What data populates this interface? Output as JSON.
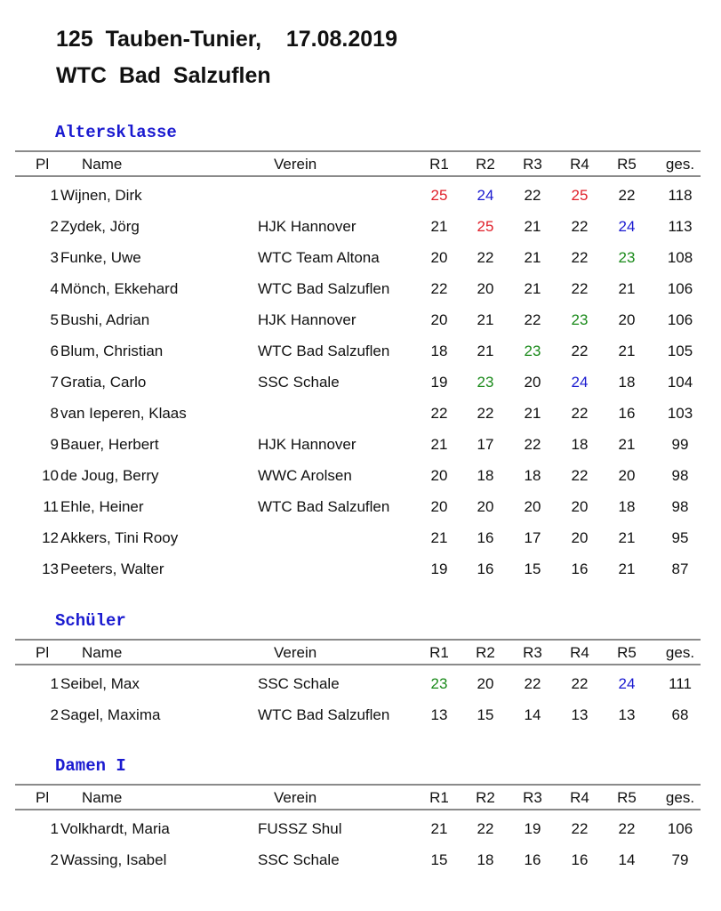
{
  "title_line1": "125  Tauben-Tunier,    17.08.2019",
  "title_line2": "WTC  Bad  Salzuflen",
  "colors": {
    "red": "#e0202a",
    "blue": "#1a1ad0",
    "green": "#1a8a1a",
    "": "#111111"
  },
  "headers": {
    "pl": "Pl",
    "name": "Name",
    "verein": "Verein",
    "r1": "R1",
    "r2": "R2",
    "r3": "R3",
    "r4": "R4",
    "r5": "R5",
    "ges": "ges."
  },
  "sections": [
    {
      "title": "Altersklasse",
      "rows": [
        {
          "pl": "1",
          "name": "Wijnen,  Dirk",
          "verein": "",
          "scores": [
            25,
            24,
            22,
            25,
            22
          ],
          "colors": [
            "red",
            "blue",
            "",
            "red",
            ""
          ],
          "ges": "118"
        },
        {
          "pl": "2",
          "name": "Zydek, Jörg",
          "verein": "HJK Hannover",
          "scores": [
            21,
            25,
            21,
            22,
            24
          ],
          "colors": [
            "",
            "red",
            "",
            "",
            "blue"
          ],
          "ges": "113"
        },
        {
          "pl": "3",
          "name": "Funke, Uwe",
          "verein": "WTC Team Altona",
          "scores": [
            20,
            22,
            21,
            22,
            23
          ],
          "colors": [
            "",
            "",
            "",
            "",
            "green"
          ],
          "ges": "108"
        },
        {
          "pl": "4",
          "name": "Mönch, Ekkehard",
          "verein": "WTC Bad Salzuflen",
          "scores": [
            22,
            20,
            21,
            22,
            21
          ],
          "colors": [
            "",
            "",
            "",
            "",
            ""
          ],
          "ges": "106"
        },
        {
          "pl": "5",
          "name": "Bushi,  Adrian",
          "verein": "HJK Hannover",
          "scores": [
            20,
            21,
            22,
            23,
            20
          ],
          "colors": [
            "",
            "",
            "",
            "green",
            ""
          ],
          "ges": "106"
        },
        {
          "pl": "6",
          "name": "Blum,  Christian",
          "verein": "WTC Bad Salzuflen",
          "scores": [
            18,
            21,
            23,
            22,
            21
          ],
          "colors": [
            "",
            "",
            "green",
            "",
            ""
          ],
          "ges": "105"
        },
        {
          "pl": "7",
          "name": "Gratia, Carlo",
          "verein": "SSC Schale",
          "scores": [
            19,
            23,
            20,
            24,
            18
          ],
          "colors": [
            "",
            "green",
            "",
            "blue",
            ""
          ],
          "ges": "104"
        },
        {
          "pl": "8",
          "name": "van Ieperen, Klaas",
          "verein": "",
          "scores": [
            22,
            22,
            21,
            22,
            16
          ],
          "colors": [
            "",
            "",
            "",
            "",
            ""
          ],
          "ges": "103"
        },
        {
          "pl": "9",
          "name": "Bauer, Herbert",
          "verein": "HJK Hannover",
          "scores": [
            21,
            17,
            22,
            18,
            21
          ],
          "colors": [
            "",
            "",
            "",
            "",
            ""
          ],
          "ges": "99"
        },
        {
          "pl": "10",
          "name": "de Joug, Berry",
          "verein": "WWC Arolsen",
          "scores": [
            20,
            18,
            18,
            22,
            20
          ],
          "colors": [
            "",
            "",
            "",
            "",
            ""
          ],
          "ges": "98"
        },
        {
          "pl": "11",
          "name": "Ehle,  Heiner",
          "verein": "WTC Bad Salzuflen",
          "scores": [
            20,
            20,
            20,
            20,
            18
          ],
          "colors": [
            "",
            "",
            "",
            "",
            ""
          ],
          "ges": "98"
        },
        {
          "pl": "12",
          "name": "Akkers, Tini Rooy",
          "verein": "",
          "scores": [
            21,
            16,
            17,
            20,
            21
          ],
          "colors": [
            "",
            "",
            "",
            "",
            ""
          ],
          "ges": "95"
        },
        {
          "pl": "13",
          "name": "Peeters, Walter",
          "verein": "",
          "scores": [
            19,
            16,
            15,
            16,
            21
          ],
          "colors": [
            "",
            "",
            "",
            "",
            ""
          ],
          "ges": "87"
        }
      ]
    },
    {
      "title": "Schüler",
      "rows": [
        {
          "pl": "1",
          "name": "Seibel, Max",
          "verein": "SSC Schale",
          "scores": [
            23,
            20,
            22,
            22,
            24
          ],
          "colors": [
            "green",
            "",
            "",
            "",
            "blue"
          ],
          "ges": "111"
        },
        {
          "pl": "2",
          "name": "Sagel, Maxima",
          "verein": "WTC Bad Salzuflen",
          "scores": [
            13,
            15,
            14,
            13,
            13
          ],
          "colors": [
            "",
            "",
            "",
            "",
            ""
          ],
          "ges": "68"
        }
      ]
    },
    {
      "title": "Damen I",
      "rows": [
        {
          "pl": "1",
          "name": "Volkhardt, Maria",
          "verein": "FUSSZ Shul",
          "scores": [
            21,
            22,
            19,
            22,
            22
          ],
          "colors": [
            "",
            "",
            "",
            "",
            ""
          ],
          "ges": "106"
        },
        {
          "pl": "2",
          "name": "Wassing,  Isabel",
          "verein": "SSC Schale",
          "scores": [
            15,
            18,
            16,
            16,
            14
          ],
          "colors": [
            "",
            "",
            "",
            "",
            ""
          ],
          "ges": "79"
        }
      ]
    }
  ]
}
